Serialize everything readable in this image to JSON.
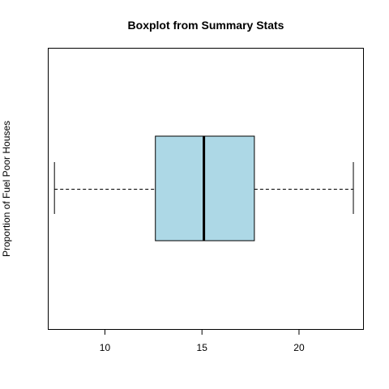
{
  "chart_data": {
    "type": "boxplot",
    "orientation": "horizontal",
    "title": "Boxplot from Summary Stats",
    "xlabel": "",
    "ylabel": "Proportion of Fuel Poor Houses",
    "xlim": [
      7.1,
      23.3
    ],
    "x_ticks": [
      10,
      15,
      20
    ],
    "grid": false,
    "legend": "none",
    "box": {
      "min": 7.4,
      "q1": 12.6,
      "median": 15.1,
      "q3": 17.7,
      "max": 22.8
    },
    "colors": {
      "box_fill": "#ADD8E6",
      "stroke": "#000000"
    }
  }
}
